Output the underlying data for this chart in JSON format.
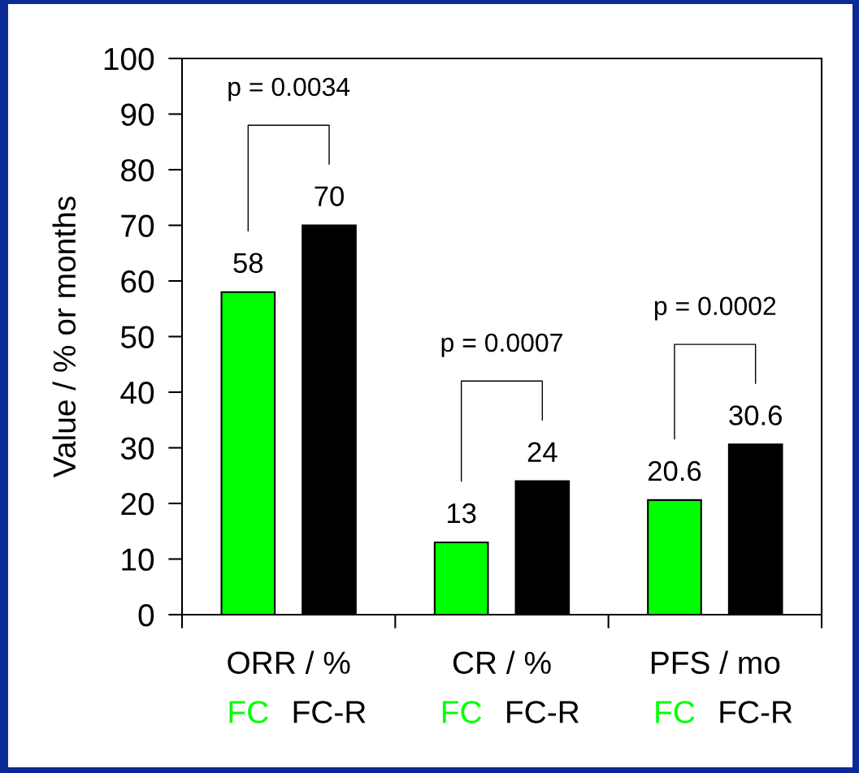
{
  "chart_data": {
    "type": "bar",
    "categories": [
      "ORR / %",
      "CR / %",
      "PFS / mo"
    ],
    "series": [
      {
        "name": "FC",
        "color": "#00ff00",
        "values": [
          58,
          13,
          20.6
        ]
      },
      {
        "name": "FC-R",
        "color": "#000000",
        "values": [
          70,
          24,
          30.6
        ]
      }
    ],
    "ylabel": "Value / % or months",
    "ylim": [
      0,
      100
    ],
    "yticks": [
      0,
      10,
      20,
      30,
      40,
      50,
      60,
      70,
      80,
      90,
      100
    ],
    "data_labels": true,
    "legend": false,
    "grid": false,
    "annotations": [
      "p = 0.0034",
      "p = 0.0007",
      "p = 0.0002"
    ]
  }
}
